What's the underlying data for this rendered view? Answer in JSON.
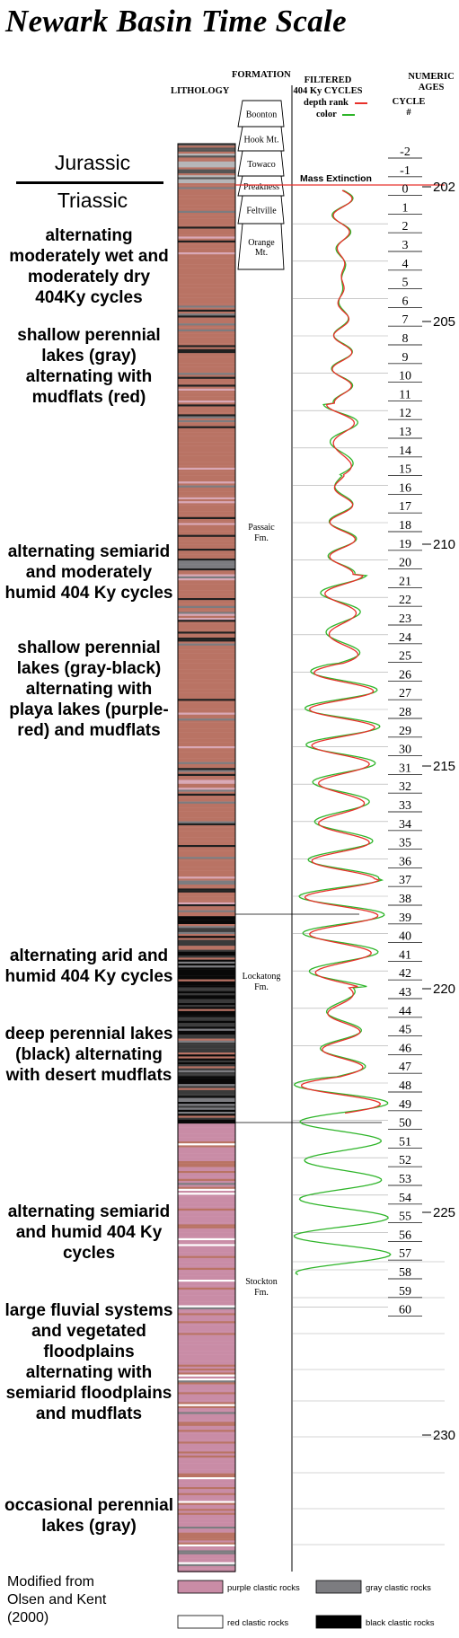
{
  "title": "Newark Basin Time Scale",
  "headers": {
    "lithology": "LITHOLOGY",
    "formation": "FORMATION",
    "filtered_line1": "FILTERED",
    "filtered_line2": "404 Ky CYCLES",
    "depth_rank": "depth rank",
    "color": "color",
    "cycle_line1": "CYCLE",
    "cycle_line2": "#",
    "numeric_line1": "NUMERIC",
    "numeric_line2": "AGES"
  },
  "periods": {
    "upper": "Jurassic",
    "lower": "Triassic"
  },
  "mass_extinction": "Mass Extinction",
  "formations": [
    {
      "name": "Boonton",
      "lines": [
        "Boonton"
      ]
    },
    {
      "name": "Hook Mt.",
      "lines": [
        "Hook Mt."
      ]
    },
    {
      "name": "Towaco",
      "lines": [
        "Towaco"
      ]
    },
    {
      "name": "Preakness",
      "lines": [
        "Preakness"
      ]
    },
    {
      "name": "Feltville",
      "lines": [
        "Feltville"
      ]
    },
    {
      "name": "Orange Mt.",
      "lines": [
        "Orange",
        "Mt."
      ]
    },
    {
      "name": "Passaic Fm.",
      "lines": [
        "Passaic",
        "Fm."
      ]
    },
    {
      "name": "Lockatong Fm.",
      "lines": [
        "Lockatong",
        "Fm."
      ]
    },
    {
      "name": "Stockton Fm.",
      "lines": [
        "Stockton",
        "Fm."
      ]
    }
  ],
  "cycles": [
    "-2",
    "-1",
    "0",
    "1",
    "2",
    "3",
    "4",
    "5",
    "6",
    "7",
    "8",
    "9",
    "10",
    "11",
    "12",
    "13",
    "14",
    "15",
    "16",
    "17",
    "18",
    "19",
    "20",
    "21",
    "22",
    "23",
    "24",
    "25",
    "26",
    "27",
    "28",
    "29",
    "30",
    "31",
    "32",
    "33",
    "34",
    "35",
    "36",
    "37",
    "38",
    "39",
    "40",
    "41",
    "42",
    "43",
    "44",
    "45",
    "46",
    "47",
    "48",
    "49",
    "50",
    "51",
    "52",
    "53",
    "54",
    "55",
    "56",
    "57",
    "58",
    "59",
    "60"
  ],
  "ages": [
    "202",
    "205",
    "210",
    "215",
    "220",
    "225",
    "230"
  ],
  "descriptions": [
    "alternating moderately wet and moderately dry 404Ky cycles",
    "shallow perennial lakes (gray) alternating with mudflats (red)",
    "alternating semiarid and moderately humid 404 Ky cycles",
    "shallow perennial lakes (gray-black) alternating with playa lakes (purple-red) and mudflats",
    "alternating arid and humid 404 Ky cycles",
    "deep perennial lakes (black) alternating with desert mudflats",
    "alternating semiarid and humid 404 Ky cycles",
    "large fluvial systems and vegetated floodplains alternating with semiarid floodplains and mudflats",
    "occasional perennial lakes (gray)"
  ],
  "legend": [
    {
      "label": "purple clastic rocks",
      "color": "#c98ca6"
    },
    {
      "label": "gray clastic rocks",
      "color": "#7c7c80"
    },
    {
      "label": "red clastic rocks",
      "color": "#ffffff"
    },
    {
      "label": "black clastic rocks",
      "color": "#000000"
    }
  ],
  "source": [
    "Modified from",
    "Olsen and Kent",
    "(2000)"
  ],
  "colors": {
    "red_curve": "#e8302a",
    "green_curve": "#2fb52a",
    "red_rock": "#b97364",
    "purple_rock": "#c98ca6",
    "gray_rock": "#7c7c80",
    "black_rock": "#000000"
  }
}
